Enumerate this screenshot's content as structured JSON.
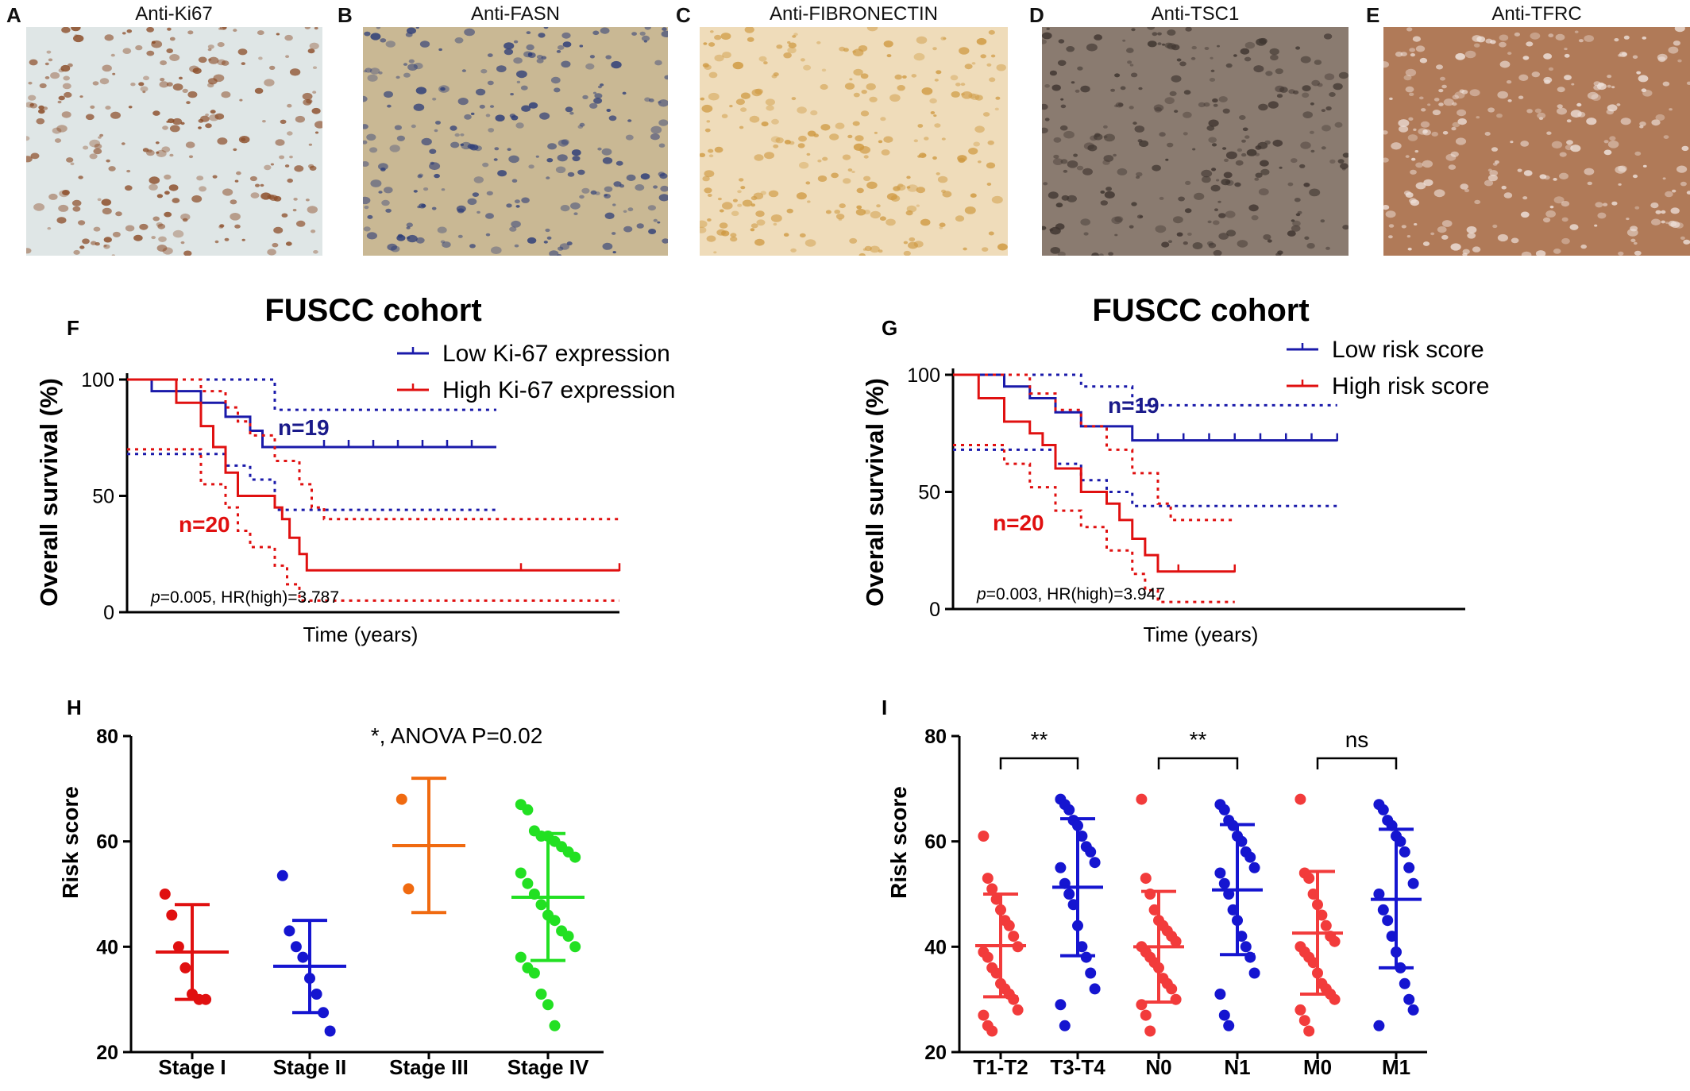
{
  "micrographs": [
    {
      "letter": "A",
      "title": "Anti-Ki67",
      "bg": "#dfe6e6",
      "spot": "#8a4a25"
    },
    {
      "letter": "B",
      "title": "Anti-FASN",
      "bg": "#c9b894",
      "spot": "#2d3d78"
    },
    {
      "letter": "C",
      "title": "Anti-FIBRONECTIN",
      "bg": "#efdcba",
      "spot": "#cf9a42"
    },
    {
      "letter": "D",
      "title": "Anti-TSC1",
      "bg": "#8a7b70",
      "spot": "#3e342f"
    },
    {
      "letter": "E",
      "title": "Anti-TFRC",
      "bg": "#b07a58",
      "spot": "#efe2dc"
    }
  ],
  "chart_data": [
    {
      "panel": "F",
      "type": "line",
      "title": "FUSCC cohort",
      "xlabel": "Time (years)",
      "ylabel": "Overall survival (%)",
      "ylim": [
        0,
        100
      ],
      "yticks": [
        0,
        50,
        100
      ],
      "xlim": [
        0,
        20
      ],
      "annotation_p": "p",
      "annotation_rest": "=0.005, HR(high)=3.787",
      "legend_placement": "top-right",
      "series": [
        {
          "name": "Low Ki-67 expression",
          "color": "#1a1aaa",
          "n_label": "n=19",
          "steps": [
            [
              0,
              100
            ],
            [
              1,
              95
            ],
            [
              3,
              90
            ],
            [
              4,
              84
            ],
            [
              5,
              78
            ],
            [
              5.5,
              71
            ],
            [
              15,
              71
            ]
          ],
          "censor": [
            8,
            9,
            10,
            11,
            12,
            13,
            14
          ],
          "ci_upper": [
            [
              0,
              100
            ],
            [
              3,
              100
            ],
            [
              6,
              87
            ],
            [
              15,
              87
            ]
          ],
          "ci_lower": [
            [
              0,
              68
            ],
            [
              3,
              68
            ],
            [
              4,
              63
            ],
            [
              5,
              57
            ],
            [
              6,
              44
            ],
            [
              15,
              44
            ]
          ]
        },
        {
          "name": "High Ki-67 expression",
          "color": "#e01010",
          "n_label": "n=20",
          "steps": [
            [
              0,
              100
            ],
            [
              2,
              90
            ],
            [
              3,
              80
            ],
            [
              3.5,
              71
            ],
            [
              4,
              60
            ],
            [
              4.5,
              50
            ],
            [
              6,
              45
            ],
            [
              6.3,
              40
            ],
            [
              6.6,
              32
            ],
            [
              7,
              25
            ],
            [
              7.3,
              18
            ],
            [
              20,
              18
            ]
          ],
          "censor": [
            16,
            20
          ],
          "ci_upper": [
            [
              0,
              100
            ],
            [
              2,
              100
            ],
            [
              3,
              95
            ],
            [
              4,
              88
            ],
            [
              4.5,
              82
            ],
            [
              5,
              76
            ],
            [
              6,
              65
            ],
            [
              7,
              55
            ],
            [
              7.5,
              45
            ],
            [
              8,
              40
            ],
            [
              20,
              40
            ]
          ],
          "ci_lower": [
            [
              0,
              70
            ],
            [
              2,
              70
            ],
            [
              3,
              55
            ],
            [
              4,
              45
            ],
            [
              4.5,
              35
            ],
            [
              5,
              28
            ],
            [
              6,
              20
            ],
            [
              6.5,
              12
            ],
            [
              7,
              5
            ],
            [
              20,
              5
            ]
          ]
        }
      ]
    },
    {
      "panel": "G",
      "type": "line",
      "title": "FUSCC cohort",
      "xlabel": "Time (years)",
      "ylabel": "Overall survival (%)",
      "ylim": [
        0,
        100
      ],
      "yticks": [
        0,
        50,
        100
      ],
      "xlim": [
        0,
        20
      ],
      "annotation_p": "p",
      "annotation_rest": "=0.003, HR(high)=3.947",
      "legend_placement": "top-right",
      "series": [
        {
          "name": "Low risk score",
          "color": "#1a1aaa",
          "n_label": "n=19",
          "steps": [
            [
              0,
              100
            ],
            [
              2,
              95
            ],
            [
              3,
              90
            ],
            [
              4,
              84
            ],
            [
              5,
              78
            ],
            [
              7,
              72
            ],
            [
              15,
              72
            ]
          ],
          "censor": [
            8,
            9,
            10,
            11,
            12,
            13,
            14,
            15
          ],
          "ci_upper": [
            [
              0,
              100
            ],
            [
              3,
              100
            ],
            [
              5,
              95
            ],
            [
              7,
              87
            ],
            [
              15,
              87
            ]
          ],
          "ci_lower": [
            [
              0,
              68
            ],
            [
              3,
              68
            ],
            [
              4,
              62
            ],
            [
              5,
              55
            ],
            [
              6,
              50
            ],
            [
              7,
              44
            ],
            [
              15,
              44
            ]
          ]
        },
        {
          "name": "High risk score",
          "color": "#e01010",
          "n_label": "n=20",
          "steps": [
            [
              0,
              100
            ],
            [
              1,
              90
            ],
            [
              2,
              80
            ],
            [
              3,
              75
            ],
            [
              3.5,
              70
            ],
            [
              4,
              60
            ],
            [
              5,
              50
            ],
            [
              6,
              45
            ],
            [
              6.5,
              38
            ],
            [
              7,
              30
            ],
            [
              7.5,
              23
            ],
            [
              8,
              16
            ],
            [
              11,
              16
            ]
          ],
          "censor": [
            8.8,
            11
          ],
          "ci_upper": [
            [
              0,
              100
            ],
            [
              2,
              100
            ],
            [
              3,
              92
            ],
            [
              4,
              85
            ],
            [
              5,
              78
            ],
            [
              6,
              68
            ],
            [
              7,
              58
            ],
            [
              8,
              45
            ],
            [
              8.5,
              38
            ],
            [
              11,
              38
            ]
          ],
          "ci_lower": [
            [
              0,
              70
            ],
            [
              1,
              70
            ],
            [
              2,
              62
            ],
            [
              3,
              52
            ],
            [
              4,
              42
            ],
            [
              5,
              35
            ],
            [
              6,
              25
            ],
            [
              7,
              15
            ],
            [
              7.5,
              8
            ],
            [
              8,
              3
            ],
            [
              11,
              3
            ]
          ]
        }
      ]
    },
    {
      "panel": "H",
      "type": "scatter",
      "title": "",
      "annotation": "*, ANOVA P=0.02",
      "ylabel": "Risk score",
      "ylim": [
        20,
        80
      ],
      "yticks": [
        20,
        40,
        60,
        80
      ],
      "categories": [
        "Stage I",
        "Stage II",
        "Stage III",
        "Stage IV"
      ],
      "groups": [
        {
          "category": "Stage I",
          "color": "#e01010",
          "mean": 39,
          "sd_low": 30,
          "sd_high": 48,
          "points": [
            50,
            46,
            40,
            36,
            31,
            30,
            30
          ]
        },
        {
          "category": "Stage II",
          "color": "#1515d0",
          "mean": 36.3,
          "sd_low": 27.5,
          "sd_high": 45,
          "points": [
            53.5,
            43,
            40,
            38,
            34,
            31,
            27.5,
            24
          ]
        },
        {
          "category": "Stage III",
          "color": "#f06a10",
          "mean": 59.2,
          "sd_low": 46.5,
          "sd_high": 72,
          "points": [
            68,
            51
          ]
        },
        {
          "category": "Stage IV",
          "color": "#22e022",
          "mean": 49.4,
          "sd_low": 37.4,
          "sd_high": 61.5,
          "points": [
            67,
            66,
            62,
            61,
            61,
            60,
            59,
            58,
            57,
            54,
            52,
            50,
            48,
            46,
            45,
            43,
            42,
            40,
            38,
            36,
            35,
            31,
            29,
            25
          ]
        }
      ]
    },
    {
      "panel": "I",
      "type": "scatter",
      "title": "",
      "ylabel": "Risk score",
      "ylim": [
        20,
        80
      ],
      "yticks": [
        20,
        40,
        60,
        80
      ],
      "categories": [
        "T1-T2",
        "T3-T4",
        "N0",
        "N1",
        "M0",
        "M1"
      ],
      "brackets": [
        {
          "from": "T1-T2",
          "to": "T3-T4",
          "label": "**"
        },
        {
          "from": "N0",
          "to": "N1",
          "label": "**"
        },
        {
          "from": "M0",
          "to": "M1",
          "label": "ns"
        }
      ],
      "groups": [
        {
          "category": "T1-T2",
          "color": "#f23b3b",
          "mean": 40.2,
          "sd_low": 30.5,
          "sd_high": 50,
          "points": [
            61,
            53,
            51,
            49,
            47,
            45,
            44,
            42,
            40,
            39,
            38,
            36,
            35,
            33,
            32,
            31,
            30,
            28,
            27,
            25,
            24
          ]
        },
        {
          "category": "T3-T4",
          "color": "#1515d0",
          "mean": 51.3,
          "sd_low": 38.3,
          "sd_high": 64.3,
          "points": [
            68,
            67,
            66,
            64,
            63,
            61,
            59,
            58,
            56,
            55,
            52,
            50,
            48,
            44,
            40,
            38,
            35,
            32,
            29,
            25
          ]
        },
        {
          "category": "N0",
          "color": "#f23b3b",
          "mean": 40,
          "sd_low": 29.5,
          "sd_high": 50.5,
          "points": [
            68,
            53,
            50,
            47,
            45,
            44,
            43,
            42,
            41,
            40,
            39,
            38,
            37,
            36,
            34,
            33,
            32,
            30,
            29,
            27,
            24
          ]
        },
        {
          "category": "N1",
          "color": "#1515d0",
          "mean": 50.8,
          "sd_low": 38.5,
          "sd_high": 63.2,
          "points": [
            67,
            66,
            64,
            63,
            61,
            60,
            58,
            57,
            55,
            54,
            52,
            50,
            47,
            45,
            42,
            40,
            38,
            35,
            31,
            27,
            25
          ]
        },
        {
          "category": "M0",
          "color": "#f23b3b",
          "mean": 42.6,
          "sd_low": 31,
          "sd_high": 54.3,
          "points": [
            68,
            54,
            53,
            50,
            48,
            46,
            44,
            42,
            41,
            40,
            39,
            38,
            37,
            35,
            33,
            32,
            31,
            30,
            28,
            26,
            24
          ]
        },
        {
          "category": "M1",
          "color": "#1515d0",
          "mean": 49,
          "sd_low": 36,
          "sd_high": 62.3,
          "points": [
            67,
            66,
            64,
            63,
            61,
            60,
            58,
            55,
            52,
            50,
            47,
            45,
            42,
            39,
            36,
            33,
            30,
            28,
            25
          ]
        }
      ]
    }
  ]
}
